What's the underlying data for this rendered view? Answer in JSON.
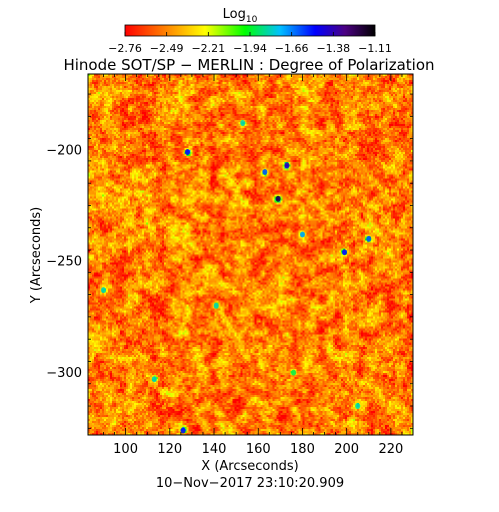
{
  "chart_data": {
    "type": "heatmap",
    "title": "Hinode SOT/SP − MERLIN : Degree of Polarization",
    "xlabel": "X (Arcseconds)",
    "ylabel": "Y (Arcseconds)",
    "xlim": [
      83,
      230
    ],
    "ylim": [
      -328,
      -166
    ],
    "x_ticks": [
      100,
      120,
      140,
      160,
      180,
      200,
      220
    ],
    "y_ticks": [
      -200,
      -250,
      -300
    ],
    "timestamp": "10−Nov−2017 23:10:20.909",
    "colorbar": {
      "label": "Log",
      "label_subscript": "10",
      "min": -2.76,
      "max": -1.11,
      "tick_labels": [
        "−2.76",
        "−2.49",
        "−2.21",
        "−1.94",
        "−1.66",
        "−1.38",
        "−1.11"
      ],
      "colormap": [
        "#ff0000",
        "#ff8000",
        "#ffff00",
        "#00ff00",
        "#00c0ff",
        "#0000ff",
        "#4b0082",
        "#000000"
      ]
    },
    "hot_spots": [
      {
        "x": 169,
        "y": -222,
        "value": -1.2
      },
      {
        "x": 173,
        "y": -207,
        "value": -1.4
      },
      {
        "x": 163,
        "y": -210,
        "value": -1.6
      },
      {
        "x": 128,
        "y": -201,
        "value": -1.5
      },
      {
        "x": 199,
        "y": -246,
        "value": -1.5
      },
      {
        "x": 210,
        "y": -240,
        "value": -1.6
      },
      {
        "x": 180,
        "y": -238,
        "value": -1.7
      },
      {
        "x": 126,
        "y": -326,
        "value": -1.5
      },
      {
        "x": 90,
        "y": -263,
        "value": -1.8
      },
      {
        "x": 153,
        "y": -188,
        "value": -1.8
      },
      {
        "x": 141,
        "y": -270,
        "value": -1.8
      },
      {
        "x": 205,
        "y": -315,
        "value": -1.8
      },
      {
        "x": 113,
        "y": -303,
        "value": -1.8
      },
      {
        "x": 176,
        "y": -300,
        "value": -1.9
      }
    ]
  }
}
